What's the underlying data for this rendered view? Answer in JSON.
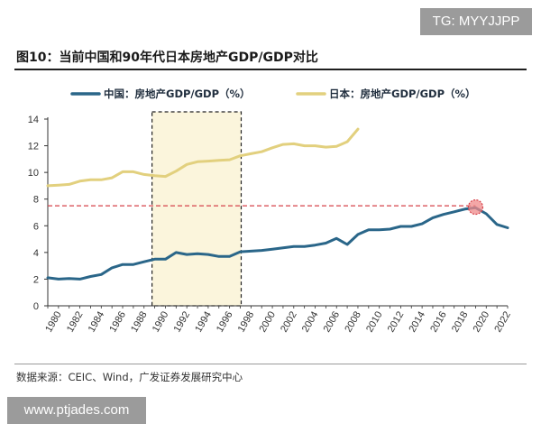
{
  "watermark_top": "TG: MYYJJPP",
  "watermark_bottom": "www.ptjades.com",
  "source": "数据来源：CEIC、Wind，广发证券发展研究中心",
  "colors": {
    "china": "#2a6689",
    "japan": "#e2d07e",
    "refline": "#d6424a",
    "highlight": "#fbf5dc",
    "marker": "#ef8a8a"
  },
  "chart_data": {
    "type": "line",
    "title": "图10：当前中国和90年代日本房地产GDP/GDP对比",
    "xlabel": "",
    "ylabel": "",
    "xlim": [
      1980,
      2023
    ],
    "ylim": [
      0,
      14
    ],
    "yticks": [
      0,
      2,
      4,
      6,
      8,
      10,
      12,
      14
    ],
    "xticks": [
      1980,
      1982,
      1984,
      1986,
      1988,
      1990,
      1992,
      1994,
      1996,
      1998,
      2000,
      2002,
      2004,
      2006,
      2008,
      2010,
      2012,
      2014,
      2016,
      2018,
      2020,
      2022
    ],
    "highlight_range": [
      1990,
      1998
    ],
    "reference_line_y": 7.5,
    "highlight_point": {
      "x": 2020,
      "y": 7.4
    },
    "legend_position": "top",
    "series": [
      {
        "name": "中国：房地产GDP/GDP（%）",
        "color": "#2a6689",
        "x": [
          1980,
          1981,
          1982,
          1983,
          1984,
          1985,
          1986,
          1987,
          1988,
          1989,
          1990,
          1991,
          1992,
          1993,
          1994,
          1995,
          1996,
          1997,
          1998,
          1999,
          2000,
          2001,
          2002,
          2003,
          2004,
          2005,
          2006,
          2007,
          2008,
          2009,
          2010,
          2011,
          2012,
          2013,
          2014,
          2015,
          2016,
          2017,
          2018,
          2019,
          2020,
          2021,
          2022,
          2023
        ],
        "values": [
          2.1,
          2.0,
          2.05,
          2.0,
          2.2,
          2.35,
          2.85,
          3.1,
          3.1,
          3.3,
          3.5,
          3.5,
          4.0,
          3.85,
          3.9,
          3.85,
          3.7,
          3.7,
          4.05,
          4.1,
          4.15,
          4.25,
          4.35,
          4.45,
          4.45,
          4.55,
          4.7,
          5.05,
          4.6,
          5.35,
          5.7,
          5.7,
          5.75,
          5.95,
          5.95,
          6.15,
          6.6,
          6.85,
          7.05,
          7.25,
          7.35,
          6.9,
          6.1,
          5.85
        ]
      },
      {
        "name": "日本：房地产GDP/GDP（%）",
        "color": "#e2d07e",
        "x": [
          1980,
          1981,
          1982,
          1983,
          1984,
          1985,
          1986,
          1987,
          1988,
          1989,
          1990,
          1991,
          1992,
          1993,
          1994,
          1995,
          1996,
          1997,
          1998,
          1999,
          2000,
          2001,
          2002,
          2003,
          2004,
          2005,
          2006,
          2007,
          2008,
          2009
        ],
        "values": [
          9.0,
          9.05,
          9.1,
          9.35,
          9.45,
          9.45,
          9.6,
          10.05,
          10.05,
          9.85,
          9.75,
          9.7,
          10.1,
          10.6,
          10.8,
          10.85,
          10.9,
          10.95,
          11.25,
          11.4,
          11.55,
          11.85,
          12.1,
          12.15,
          12.0,
          12.0,
          11.9,
          11.95,
          12.3,
          13.25
        ]
      }
    ]
  }
}
